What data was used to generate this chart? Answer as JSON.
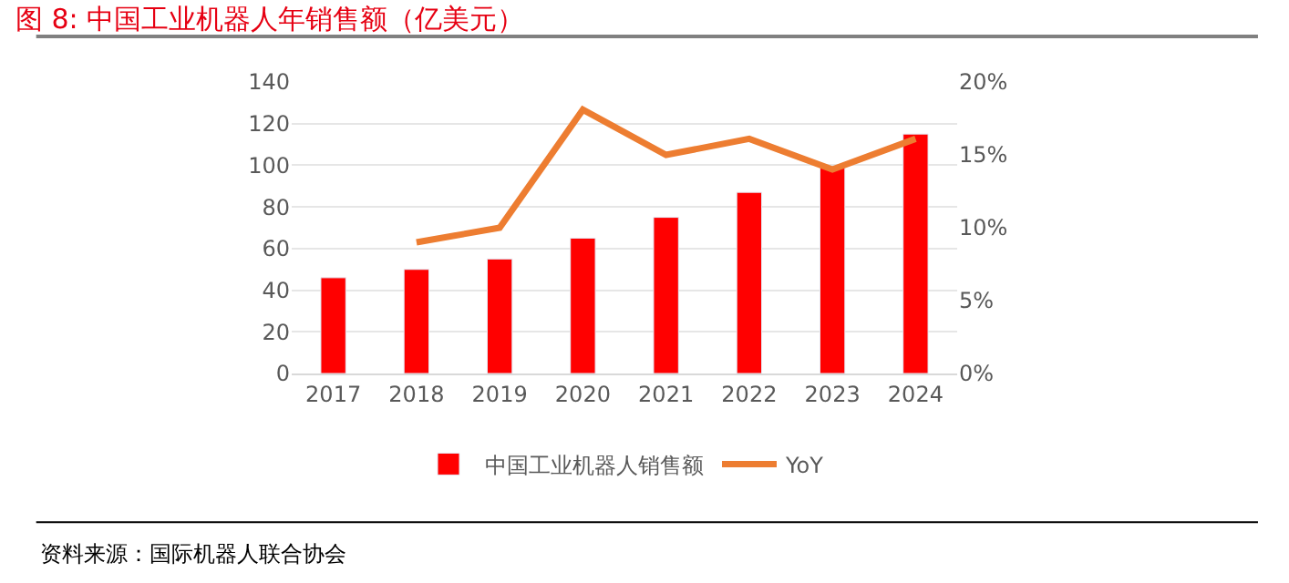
{
  "chart_data": {
    "type": "bar",
    "title": "图 8: 中国工业机器人年销售额（亿美元）",
    "categories": [
      "2017",
      "2018",
      "2019",
      "2020",
      "2021",
      "2022",
      "2023",
      "2024"
    ],
    "series": [
      {
        "name": "中国工业机器人销售额",
        "color": "#ff0000",
        "values": [
          46,
          50,
          55,
          65,
          75,
          87,
          99,
          115
        ]
      },
      {
        "name": "YoY",
        "color": "#ed7d31",
        "type": "line",
        "axis": "y2",
        "values": [
          null,
          9.0,
          10.0,
          18.1,
          15.0,
          16.1,
          14.0,
          16.1
        ]
      }
    ],
    "ylim": [
      0,
      140
    ],
    "yticks": [
      0,
      20,
      40,
      60,
      80,
      100,
      120,
      140
    ],
    "y2lim": [
      0,
      20
    ],
    "y2ticks": [
      {
        "value": 0,
        "label": "0%"
      },
      {
        "value": 5,
        "label": "5%"
      },
      {
        "value": 10,
        "label": "10%"
      },
      {
        "value": 15,
        "label": "15%"
      },
      {
        "value": 20,
        "label": "20%"
      }
    ],
    "grid": "y",
    "legend": "bottom",
    "marker": "none",
    "annotations": [
      "资料来源：国际机器人联合协会"
    ]
  }
}
